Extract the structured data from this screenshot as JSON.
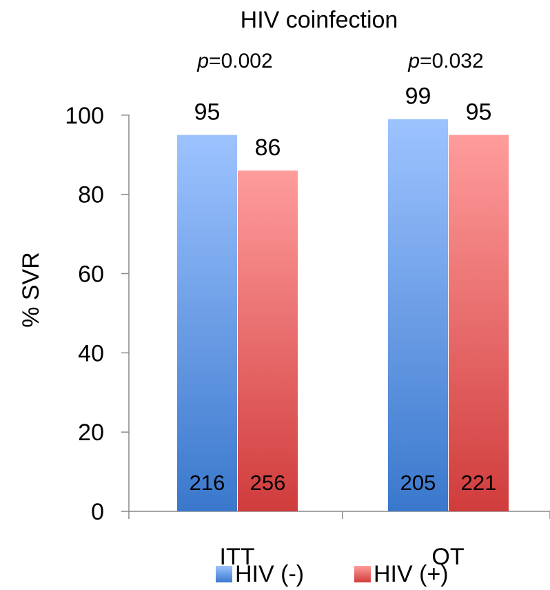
{
  "chart_data": {
    "type": "bar",
    "title": "HIV coinfection",
    "xlabel": "",
    "ylabel": "% SVR",
    "ylim": [
      0,
      110
    ],
    "yticks": [
      0,
      20,
      40,
      60,
      80,
      100
    ],
    "grid": false,
    "legend_position": "bottom",
    "categories": [
      "ITT",
      "OT"
    ],
    "p_values": [
      {
        "prefix": "p",
        "text": "=0.002"
      },
      {
        "prefix": "p",
        "text": "=0.032"
      }
    ],
    "series": [
      {
        "name": "HIV (-)",
        "values": [
          95,
          99
        ],
        "n": [
          "216",
          "205"
        ],
        "color_top": "#9dc3ff",
        "color_bottom": "#3a78cc"
      },
      {
        "name": "HIV (+)",
        "values": [
          86,
          95
        ],
        "n": [
          "256",
          "221"
        ],
        "color_top": "#ff9c9c",
        "color_bottom": "#d03c3c"
      }
    ]
  }
}
